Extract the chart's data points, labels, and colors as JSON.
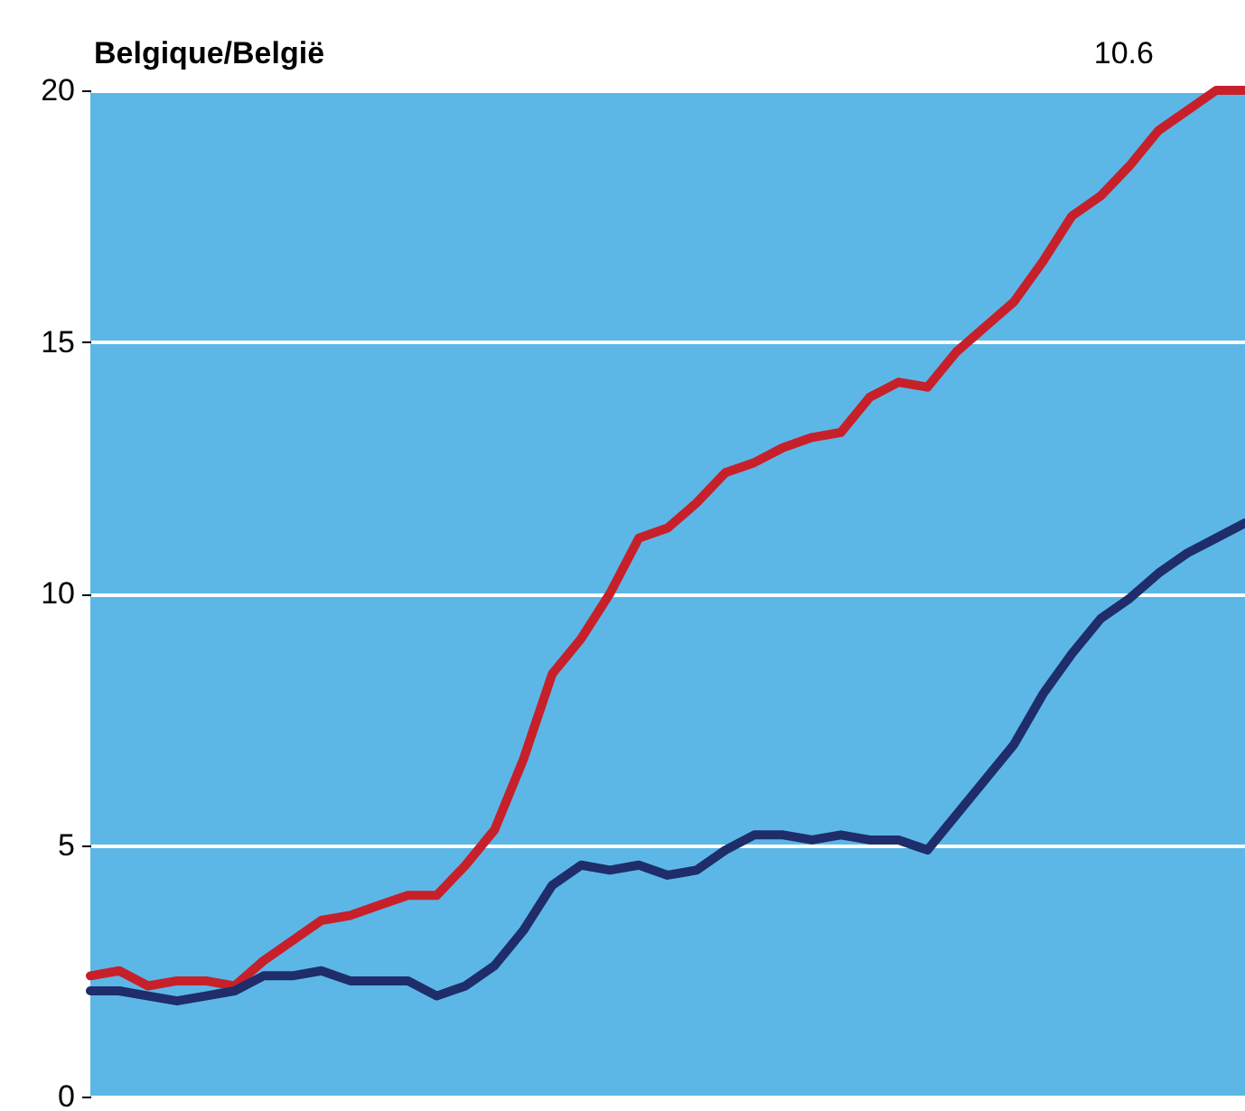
{
  "chart_data": {
    "type": "line",
    "title": "Belgique/België",
    "annotations": [
      "10.6"
    ],
    "categories": [
      null,
      null,
      null,
      null,
      null,
      null,
      null,
      null,
      null,
      null,
      null,
      null,
      null,
      null,
      null,
      null,
      null,
      null,
      null,
      null,
      null,
      null,
      null,
      null,
      null,
      null,
      null,
      null,
      null,
      null,
      null,
      null,
      null,
      null,
      null,
      null,
      null,
      null,
      null,
      null,
      null
    ],
    "series": [
      {
        "color": "#c8202a",
        "values": [
          2.4,
          2.5,
          2.2,
          2.3,
          2.3,
          2.2,
          2.7,
          3.1,
          3.5,
          3.6,
          3.8,
          4.0,
          4.0,
          4.6,
          5.3,
          6.7,
          8.4,
          9.1,
          10.0,
          11.1,
          11.3,
          11.8,
          12.4,
          12.6,
          12.9,
          13.1,
          13.2,
          13.9,
          14.2,
          14.1,
          14.8,
          15.3,
          15.8,
          16.6,
          17.5,
          17.9,
          18.5,
          19.2,
          19.6,
          20.0,
          20.0
        ]
      },
      {
        "color": "#1f2d6b",
        "values": [
          2.1,
          2.1,
          2.0,
          1.9,
          2.0,
          2.1,
          2.4,
          2.4,
          2.5,
          2.3,
          2.3,
          2.3,
          2.0,
          2.2,
          2.6,
          3.3,
          4.2,
          4.6,
          4.5,
          4.6,
          4.4,
          4.5,
          4.9,
          5.2,
          5.2,
          5.1,
          5.2,
          5.1,
          5.1,
          4.9,
          5.6,
          6.3,
          7.0,
          8.0,
          8.8,
          9.5,
          9.9,
          10.4,
          10.8,
          11.1,
          11.4
        ]
      }
    ],
    "ylim": [
      0,
      20
    ],
    "yticks": [
      0,
      5,
      10,
      15,
      20
    ],
    "grid": "y",
    "tick_labels": "y",
    "marker": "none",
    "line_style": "solid"
  }
}
